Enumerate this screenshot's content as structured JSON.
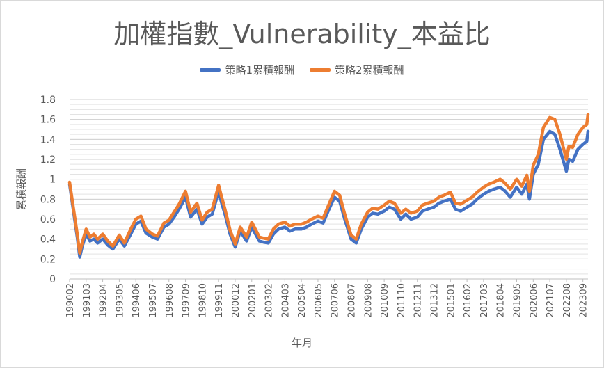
{
  "chart_data": {
    "type": "line",
    "title": "加權指數_Vulnerability_本益比",
    "xlabel": "年月",
    "ylabel": "累積報酬",
    "ylim": [
      0,
      1.8
    ],
    "yticks": [
      "0",
      "0.2",
      "0.4",
      "0.6",
      "0.8",
      "1",
      "1.2",
      "1.4",
      "1.6",
      "1.8"
    ],
    "grid": true,
    "legend_position": "top",
    "x_tick_labels": [
      "199002",
      "199103",
      "199204",
      "199305",
      "199406",
      "199507",
      "199608",
      "199709",
      "199810",
      "199911",
      "200012",
      "200201",
      "200302",
      "200403",
      "200504",
      "200605",
      "200706",
      "200807",
      "200908",
      "201009",
      "201110",
      "201211",
      "201312",
      "201501",
      "201602",
      "201703",
      "201804",
      "201905",
      "202006",
      "202107",
      "202208",
      "202309"
    ],
    "x": [
      "199002",
      "199008",
      "199010",
      "199012",
      "199103",
      "199106",
      "199109",
      "199112",
      "199204",
      "199208",
      "199212",
      "199305",
      "199309",
      "199402",
      "199406",
      "199410",
      "199502",
      "199507",
      "199511",
      "199604",
      "199608",
      "199612",
      "199704",
      "199709",
      "199801",
      "199806",
      "199810",
      "199902",
      "199906",
      "199911",
      "200001",
      "200004",
      "200008",
      "200012",
      "200104",
      "200109",
      "200201",
      "200207",
      "200210",
      "200302",
      "200306",
      "200310",
      "200403",
      "200407",
      "200411",
      "200504",
      "200508",
      "200512",
      "200605",
      "200609",
      "200701",
      "200706",
      "200710",
      "200802",
      "200807",
      "200811",
      "200903",
      "200908",
      "200912",
      "201004",
      "201009",
      "201101",
      "201105",
      "201110",
      "201202",
      "201206",
      "201211",
      "201303",
      "201307",
      "201312",
      "201404",
      "201408",
      "201501",
      "201505",
      "201509",
      "201602",
      "201606",
      "201610",
      "201703",
      "201707",
      "201711",
      "201804",
      "201808",
      "201812",
      "201905",
      "201909",
      "202001",
      "202003",
      "202006",
      "202010",
      "202102",
      "202107",
      "202111",
      "202203",
      "202208",
      "202210",
      "202301",
      "202305",
      "202309",
      "202312",
      "202401"
    ],
    "series": [
      {
        "name": "策略1累積報酬",
        "color": "#4472C4",
        "values": [
          0.95,
          0.42,
          0.22,
          0.33,
          0.45,
          0.38,
          0.4,
          0.36,
          0.4,
          0.34,
          0.3,
          0.4,
          0.33,
          0.45,
          0.55,
          0.58,
          0.46,
          0.42,
          0.4,
          0.52,
          0.55,
          0.62,
          0.7,
          0.82,
          0.62,
          0.7,
          0.55,
          0.62,
          0.65,
          0.88,
          0.78,
          0.65,
          0.45,
          0.32,
          0.48,
          0.38,
          0.52,
          0.38,
          0.37,
          0.36,
          0.45,
          0.5,
          0.52,
          0.48,
          0.5,
          0.5,
          0.52,
          0.55,
          0.58,
          0.56,
          0.68,
          0.82,
          0.78,
          0.6,
          0.4,
          0.36,
          0.5,
          0.62,
          0.66,
          0.65,
          0.68,
          0.72,
          0.7,
          0.6,
          0.65,
          0.6,
          0.62,
          0.68,
          0.7,
          0.72,
          0.76,
          0.78,
          0.8,
          0.7,
          0.68,
          0.72,
          0.75,
          0.8,
          0.85,
          0.88,
          0.9,
          0.92,
          0.88,
          0.82,
          0.92,
          0.85,
          0.95,
          0.8,
          1.05,
          1.15,
          1.4,
          1.48,
          1.45,
          1.3,
          1.08,
          1.2,
          1.18,
          1.3,
          1.35,
          1.38,
          1.48
        ]
      },
      {
        "name": "策略2累積報酬",
        "color": "#ED7D31",
        "values": [
          0.97,
          0.45,
          0.26,
          0.37,
          0.5,
          0.42,
          0.45,
          0.4,
          0.45,
          0.38,
          0.33,
          0.44,
          0.36,
          0.5,
          0.6,
          0.63,
          0.5,
          0.45,
          0.43,
          0.56,
          0.59,
          0.67,
          0.75,
          0.88,
          0.67,
          0.76,
          0.59,
          0.67,
          0.7,
          0.94,
          0.84,
          0.7,
          0.49,
          0.35,
          0.52,
          0.42,
          0.57,
          0.42,
          0.41,
          0.4,
          0.5,
          0.55,
          0.57,
          0.53,
          0.55,
          0.55,
          0.57,
          0.6,
          0.63,
          0.61,
          0.73,
          0.88,
          0.84,
          0.65,
          0.44,
          0.4,
          0.55,
          0.67,
          0.71,
          0.7,
          0.74,
          0.78,
          0.76,
          0.66,
          0.7,
          0.66,
          0.68,
          0.74,
          0.76,
          0.78,
          0.82,
          0.84,
          0.87,
          0.76,
          0.75,
          0.79,
          0.82,
          0.87,
          0.92,
          0.95,
          0.97,
          1.0,
          0.96,
          0.9,
          1.0,
          0.93,
          1.04,
          0.88,
          1.14,
          1.25,
          1.52,
          1.62,
          1.6,
          1.45,
          1.2,
          1.33,
          1.32,
          1.45,
          1.52,
          1.55,
          1.65
        ]
      }
    ]
  }
}
